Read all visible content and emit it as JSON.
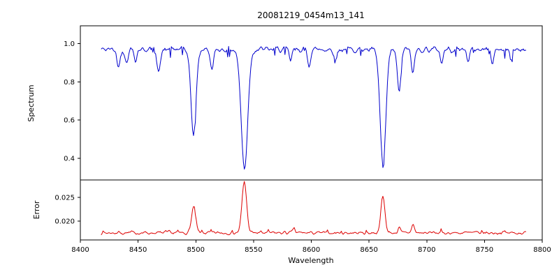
{
  "figure_title": "20081219_0454m13_141",
  "chart_data": [
    {
      "type": "line",
      "panel": "spectrum",
      "title": "20081219_0454m13_141",
      "ylabel": "Spectrum",
      "xlabel": "Wavelength",
      "xlim": [
        8400,
        8800
      ],
      "ylim": [
        0.287,
        1.093
      ],
      "yticks": [
        0.4,
        0.6,
        0.8,
        1.0
      ],
      "ytick_labels": [
        "0.4",
        "0.6",
        "0.8",
        "1.0"
      ],
      "x_range_data": [
        8418,
        8786
      ],
      "color": "#0000cc",
      "baseline": 0.97,
      "noise_amplitude": 0.018,
      "noise_seed": 42,
      "absorption_lines": [
        {
          "center": 8433,
          "depth": 0.09,
          "width": 1.4
        },
        {
          "center": 8440,
          "depth": 0.07,
          "width": 1.2
        },
        {
          "center": 8448,
          "depth": 0.06,
          "width": 1.0
        },
        {
          "center": 8468,
          "depth": 0.11,
          "width": 1.5
        },
        {
          "center": 8498.0,
          "depth": 0.45,
          "width": 2.2
        },
        {
          "center": 8514,
          "depth": 0.1,
          "width": 1.5
        },
        {
          "center": 8542.1,
          "depth": 0.625,
          "width": 2.8
        },
        {
          "center": 8582,
          "depth": 0.06,
          "width": 1.2
        },
        {
          "center": 8598,
          "depth": 0.08,
          "width": 1.3
        },
        {
          "center": 8621,
          "depth": 0.06,
          "width": 1.2
        },
        {
          "center": 8662.1,
          "depth": 0.605,
          "width": 2.5
        },
        {
          "center": 8676,
          "depth": 0.22,
          "width": 1.6
        },
        {
          "center": 8688,
          "depth": 0.12,
          "width": 1.4
        },
        {
          "center": 8713,
          "depth": 0.07,
          "width": 1.2
        },
        {
          "center": 8736,
          "depth": 0.06,
          "width": 1.2
        },
        {
          "center": 8757,
          "depth": 0.07,
          "width": 1.2
        },
        {
          "center": 8773,
          "depth": 0.06,
          "width": 1.0
        }
      ],
      "grid": false,
      "legend": "none"
    },
    {
      "type": "line",
      "panel": "error",
      "ylabel": "Error",
      "xlabel": "Wavelength",
      "xlim": [
        8400,
        8800
      ],
      "ylim": [
        0.016,
        0.0287
      ],
      "yticks": [
        0.02,
        0.025
      ],
      "ytick_labels": [
        "0.020",
        "0.025"
      ],
      "xticks": [
        8400,
        8450,
        8500,
        8550,
        8600,
        8650,
        8700,
        8750,
        8800
      ],
      "xtick_labels": [
        "8400",
        "8450",
        "8500",
        "8550",
        "8600",
        "8650",
        "8700",
        "8750",
        "8800"
      ],
      "x_range_data": [
        8418,
        8786
      ],
      "color": "#dd0000",
      "baseline": 0.0175,
      "noise_amplitude": 0.0004,
      "noise_seed": 7,
      "peaks": [
        {
          "center": 8498,
          "height": 0.0053,
          "width": 1.8
        },
        {
          "center": 8542,
          "height": 0.0108,
          "width": 2.0
        },
        {
          "center": 8585,
          "height": 0.0008,
          "width": 1.0
        },
        {
          "center": 8662,
          "height": 0.0076,
          "width": 1.8
        },
        {
          "center": 8676,
          "height": 0.0012,
          "width": 1.0
        },
        {
          "center": 8688,
          "height": 0.0018,
          "width": 1.2
        }
      ],
      "grid": false,
      "legend": "none"
    }
  ]
}
